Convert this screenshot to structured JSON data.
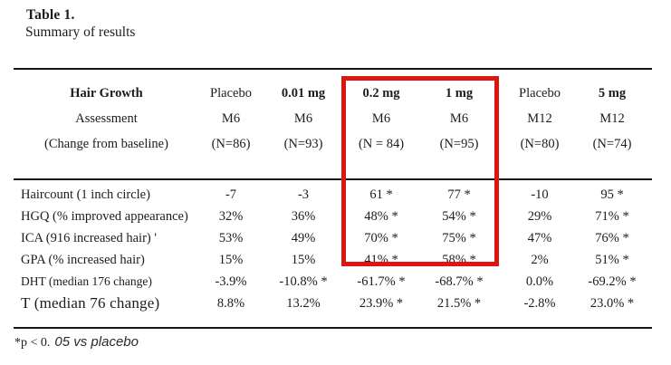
{
  "title": "Table 1.",
  "subtitle": "Summary of results",
  "highlight": {
    "color": "#dc1712",
    "highlighted_columns": [
      "0.2 mg",
      "1 mg"
    ]
  },
  "table": {
    "header_rows": [
      [
        "Hair Growth",
        "Placebo",
        "0.01 mg",
        "0.2 mg",
        "1 mg",
        "Placebo",
        "5 mg"
      ],
      [
        "Assessment",
        "M6",
        "M6",
        "M6",
        "M6",
        "M12",
        "M12"
      ],
      [
        "(Change from baseline)",
        "(N=86)",
        "(N=93)",
        "(N = 84)",
        "(N=95)",
        "(N=80)",
        "(N=74)"
      ]
    ],
    "header_bold": [
      true,
      false,
      true,
      true,
      true,
      false,
      true
    ],
    "rows": [
      {
        "label": "Haircount (1 inch circle)",
        "values": [
          "-7",
          "-3",
          "61 *",
          "77 *",
          "-10",
          "95 *"
        ]
      },
      {
        "label": "HGQ (% improved appearance)",
        "values": [
          "32%",
          "36%",
          "48% *",
          "54% *",
          "29%",
          "71% *"
        ]
      },
      {
        "label": "ICA (916 increased hair) '",
        "values": [
          "53%",
          "49%",
          "70% *",
          "75% *",
          "47%",
          "76% *"
        ]
      },
      {
        "label": "GPA (% increased hair)",
        "values": [
          "15%",
          "15%",
          "41% *",
          "58% *",
          "2%",
          "51% *"
        ]
      },
      {
        "label": "DHT (median 176 change)",
        "values": [
          "-3.9%",
          "-10.8% *",
          "-61.7% *",
          "-68.7% *",
          "0.0%",
          "-69.2% *"
        ]
      },
      {
        "label": "T (median 76 change)",
        "values": [
          "8.8%",
          "13.2%",
          "23.9% *",
          "21.5% *",
          "-2.8%",
          "23.0% *"
        ]
      }
    ]
  },
  "footnote": {
    "prefix": "*p < 0.",
    "italic": "05 vs placebo"
  }
}
